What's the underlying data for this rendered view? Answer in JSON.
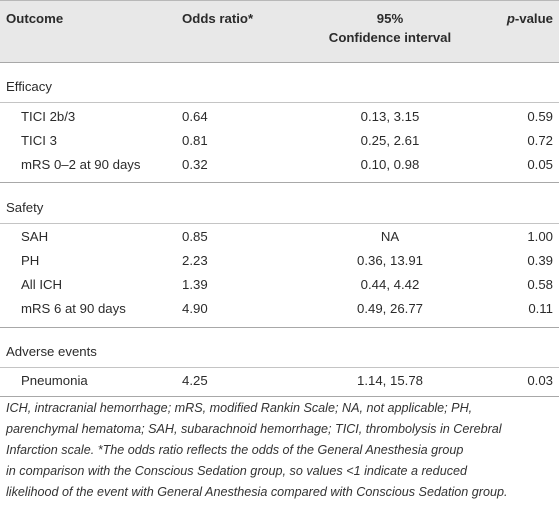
{
  "header": {
    "outcome": "Outcome",
    "odds": "Odds ratio*",
    "ci_line1": "95%",
    "ci_line2": "Confidence interval",
    "p_prefix": "p",
    "p_suffix": "-value"
  },
  "sections": [
    {
      "title": "Efficacy",
      "rows": [
        {
          "label": "TICI 2b/3",
          "odds": "0.64",
          "ci": "0.13, 3.15",
          "p": "0.59"
        },
        {
          "label": "TICI 3",
          "odds": "0.81",
          "ci": "0.25, 2.61",
          "p": "0.72"
        },
        {
          "label": "mRS 0–2 at 90 days",
          "odds": "0.32",
          "ci": "0.10, 0.98",
          "p": "0.05"
        }
      ]
    },
    {
      "title": "Safety",
      "rows": [
        {
          "label": "SAH",
          "odds": "0.85",
          "ci": "NA",
          "p": "1.00"
        },
        {
          "label": "PH",
          "odds": "2.23",
          "ci": "0.36, 13.91",
          "p": "0.39"
        },
        {
          "label": "All ICH",
          "odds": "1.39",
          "ci": "0.44, 4.42",
          "p": "0.58"
        },
        {
          "label": "mRS 6 at 90 days",
          "odds": "4.90",
          "ci": "0.49, 26.77",
          "p": "0.11"
        }
      ]
    },
    {
      "title": "Adverse events",
      "rows": [
        {
          "label": "Pneumonia",
          "odds": "4.25",
          "ci": "1.14, 15.78",
          "p": "0.03"
        }
      ]
    }
  ],
  "footnote": {
    "line1": "ICH, intracranial hemorrhage; mRS, modified Rankin Scale; NA, not applicable; PH,",
    "line2": "parenchymal hematoma; SAH, subarachnoid hemorrhage; TICI, thrombolysis in Cerebral",
    "line3": "Infarction scale. *The odds ratio reflects the odds of the General Anesthesia group",
    "line4": "in comparison with the Conscious Sedation group, so values <1 indicate a reduced",
    "line5": "likelihood of the event with General Anesthesia compared with Conscious Sedation group."
  }
}
